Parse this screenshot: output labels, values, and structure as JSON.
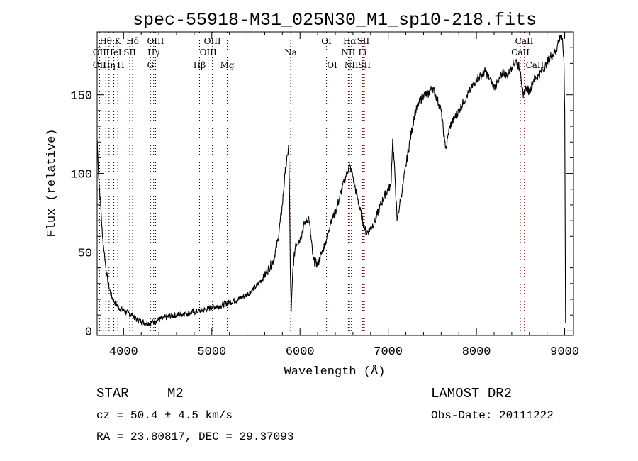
{
  "chart_data": {
    "type": "line",
    "title": "spec-55918-M31_025N30_M1_sp10-218.fits",
    "xlabel": "Wavelength (Å)",
    "ylabel": "Flux (relative)",
    "xlim": [
      3700,
      9100
    ],
    "ylim": [
      -3,
      190
    ],
    "xticks": [
      4000,
      5000,
      6000,
      7000,
      8000,
      9000
    ],
    "yticks": [
      0,
      50,
      100,
      150
    ],
    "grid": false,
    "series": [
      {
        "values_note": "",
        "x": [
          3700,
          3720,
          3740,
          3760,
          3780,
          3800,
          3820,
          3850,
          3880,
          3900,
          3930,
          3960,
          4000,
          4050,
          4100,
          4150,
          4200,
          4250,
          4300,
          4350,
          4400,
          4450,
          4500,
          4600,
          4700,
          4800,
          4900,
          5000,
          5100,
          5200,
          5300,
          5400,
          5500,
          5600,
          5700,
          5750,
          5800,
          5830,
          5860,
          5870,
          5880,
          5890,
          5900,
          5920,
          5950,
          6000,
          6050,
          6100,
          6150,
          6200,
          6250,
          6300,
          6350,
          6400,
          6450,
          6500,
          6530,
          6560,
          6580,
          6600,
          6620,
          6650,
          6700,
          6750,
          6800,
          6850,
          6900,
          6950,
          7000,
          7030,
          7050,
          7080,
          7100,
          7130,
          7160,
          7200,
          7250,
          7300,
          7350,
          7400,
          7450,
          7500,
          7550,
          7600,
          7640,
          7660,
          7680,
          7700,
          7750,
          7800,
          7850,
          7900,
          7950,
          8000,
          8050,
          8100,
          8150,
          8200,
          8250,
          8300,
          8350,
          8400,
          8450,
          8500,
          8530,
          8560,
          8600,
          8650,
          8700,
          8750,
          8800,
          8850,
          8900,
          8920,
          8950,
          8970,
          8990,
          9000,
          9010
        ],
        "y": [
          122,
          95,
          80,
          60,
          50,
          40,
          32,
          24,
          20,
          18,
          16,
          14,
          13,
          11,
          10,
          7,
          6,
          5,
          5,
          6,
          7,
          8,
          9,
          10,
          11,
          12,
          13,
          15,
          16,
          18,
          20,
          23,
          28,
          35,
          45,
          58,
          80,
          100,
          112,
          118,
          90,
          40,
          12,
          40,
          55,
          58,
          68,
          72,
          45,
          42,
          50,
          58,
          70,
          75,
          85,
          95,
          100,
          105,
          102,
          98,
          92,
          85,
          72,
          62,
          65,
          70,
          78,
          85,
          90,
          92,
          122,
          95,
          70,
          80,
          90,
          105,
          122,
          138,
          145,
          150,
          150,
          155,
          148,
          140,
          120,
          116,
          125,
          130,
          135,
          140,
          145,
          150,
          155,
          160,
          162,
          165,
          160,
          155,
          158,
          165,
          162,
          168,
          172,
          165,
          148,
          155,
          152,
          160,
          162,
          166,
          170,
          175,
          178,
          182,
          188,
          185,
          175,
          140,
          5
        ]
      }
    ],
    "line_markers": [
      {
        "label": "Hθ",
        "x": 3798,
        "row": 1,
        "color": "#000000"
      },
      {
        "label": "OII",
        "x": 3727,
        "row": 2,
        "color": "#000000"
      },
      {
        "label": "OII",
        "x": 3727,
        "row": 3,
        "color": "#000000"
      },
      {
        "label": "K",
        "x": 3934,
        "row": 1,
        "color": "#000000"
      },
      {
        "label": "HeI",
        "x": 3889,
        "row": 2,
        "color": "#000000"
      },
      {
        "label": "Hη",
        "x": 3835,
        "row": 3,
        "color": "#000000"
      },
      {
        "label": "Hδ",
        "x": 4102,
        "row": 1,
        "color": "#000000"
      },
      {
        "label": "SII",
        "x": 4070,
        "row": 2,
        "color": "#000000"
      },
      {
        "label": "H",
        "x": 3969,
        "row": 3,
        "color": "#000000"
      },
      {
        "label": "OIII",
        "x": 4363,
        "row": 1,
        "color": "#000000"
      },
      {
        "label": "Hγ",
        "x": 4341,
        "row": 2,
        "color": "#000000"
      },
      {
        "label": "G",
        "x": 4305,
        "row": 3,
        "color": "#000000"
      },
      {
        "label": "OIII",
        "x": 5007,
        "row": 1,
        "color": "#000000"
      },
      {
        "label": "OIII",
        "x": 4959,
        "row": 2,
        "color": "#000000"
      },
      {
        "label": "Hβ",
        "x": 4861,
        "row": 3,
        "color": "#000000"
      },
      {
        "label": "Mg",
        "x": 5175,
        "row": 3,
        "color": "#000000"
      },
      {
        "label": "Na",
        "x": 5893,
        "row": 2,
        "color": "#d00000"
      },
      {
        "label": "OI",
        "x": 6300,
        "row": 1,
        "color": "#000000"
      },
      {
        "label": "OI",
        "x": 6364,
        "row": 3,
        "color": "#000000"
      },
      {
        "label": "Hα",
        "x": 6563,
        "row": 1,
        "color": "#d00000"
      },
      {
        "label": "SII",
        "x": 6717,
        "row": 1,
        "color": "#d00000"
      },
      {
        "label": "NII",
        "x": 6548,
        "row": 2,
        "color": "#000000"
      },
      {
        "label": "Li",
        "x": 6708,
        "row": 2,
        "color": "#000000"
      },
      {
        "label": "NII",
        "x": 6583,
        "row": 3,
        "color": "#000000"
      },
      {
        "label": "SII",
        "x": 6731,
        "row": 3,
        "color": "#d00000"
      },
      {
        "label": "CaII",
        "x": 8542,
        "row": 1,
        "color": "#d00000"
      },
      {
        "label": "CaII",
        "x": 8498,
        "row": 2,
        "color": "#d00000"
      },
      {
        "label": "CaII",
        "x": 8662,
        "row": 3,
        "color": "#d00000"
      }
    ]
  },
  "info": {
    "class_label": "STAR",
    "subclass": "M2",
    "survey": "LAMOST DR2",
    "redshift_text": "cz = 50.4 ± 4.5 km/s",
    "obs_date_text": "Obs-Date: 20111222",
    "coords_text": "RA =  23.80817, DEC =  29.37093"
  }
}
